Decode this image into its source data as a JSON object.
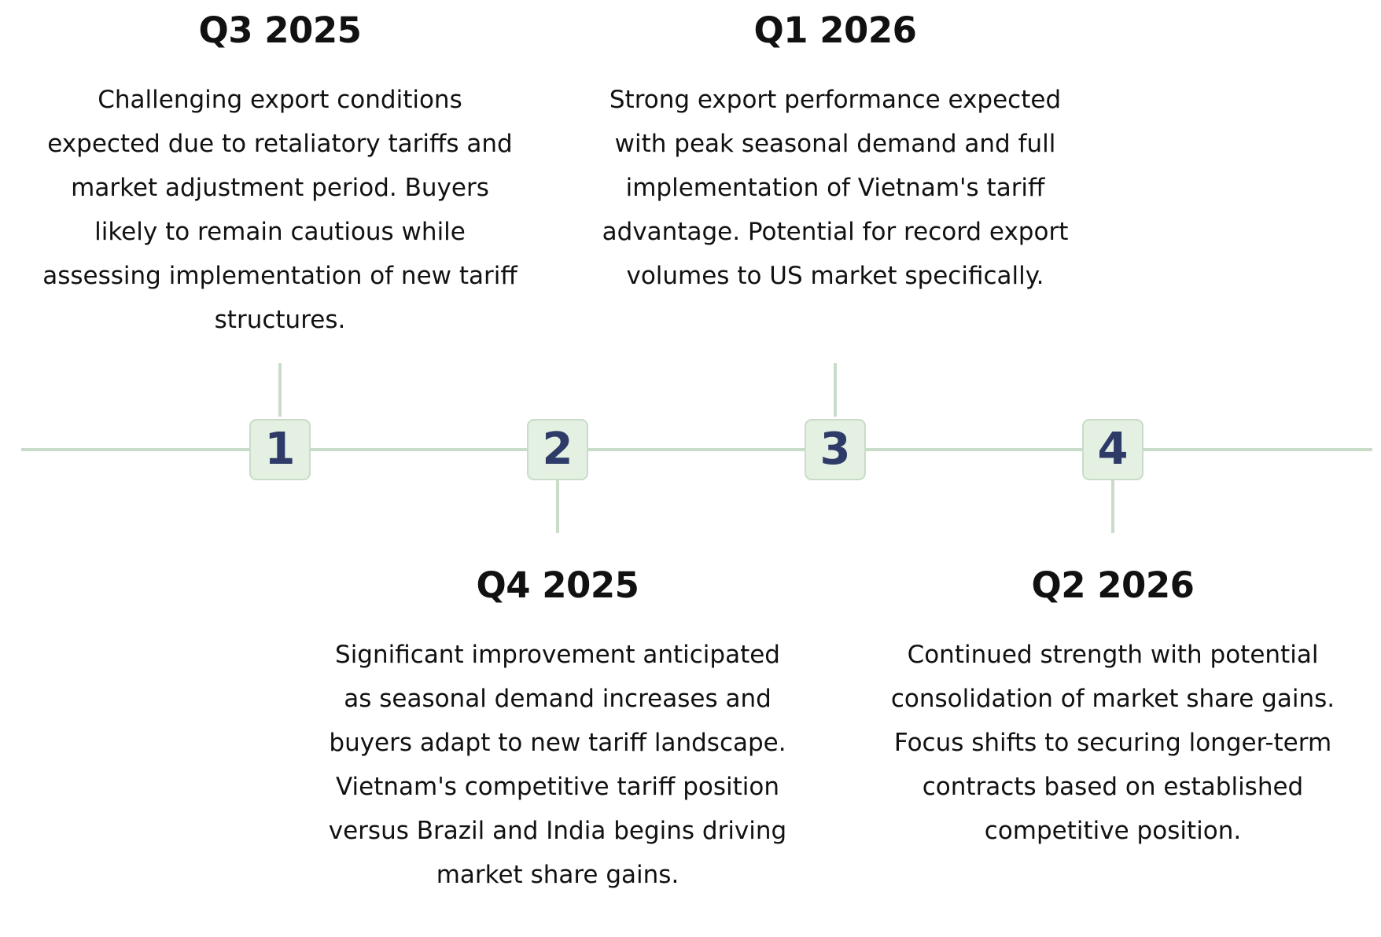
{
  "milestones": [
    {
      "number": "1",
      "title": "Q3 2025",
      "position": "above",
      "description": "Challenging export conditions expected due to retaliatory tariffs and market adjustment period. Buyers likely to remain cautious while assessing implementation of new tariff structures."
    },
    {
      "number": "2",
      "title": "Q4 2025",
      "position": "below",
      "description": "Significant improvement anticipated as seasonal demand increases and buyers adapt to new tariff landscape. Vietnam's competitive tariff position versus Brazil and India begins driving market share gains."
    },
    {
      "number": "3",
      "title": "Q1 2026",
      "position": "above",
      "description": "Strong export performance expected with peak seasonal demand and full implementation of Vietnam's tariff advantage. Potential for record export volumes to US market specifically."
    },
    {
      "number": "4",
      "title": "Q2 2026",
      "position": "below",
      "description": "Continued strength with potential consolidation of market share gains. Focus shifts to securing longer-term contracts based on established competitive position."
    }
  ],
  "colors": {
    "line": "#c9dcc9",
    "marker_fill": "#e3f0e2",
    "marker_text": "#2e3b69",
    "text": "#111111"
  }
}
